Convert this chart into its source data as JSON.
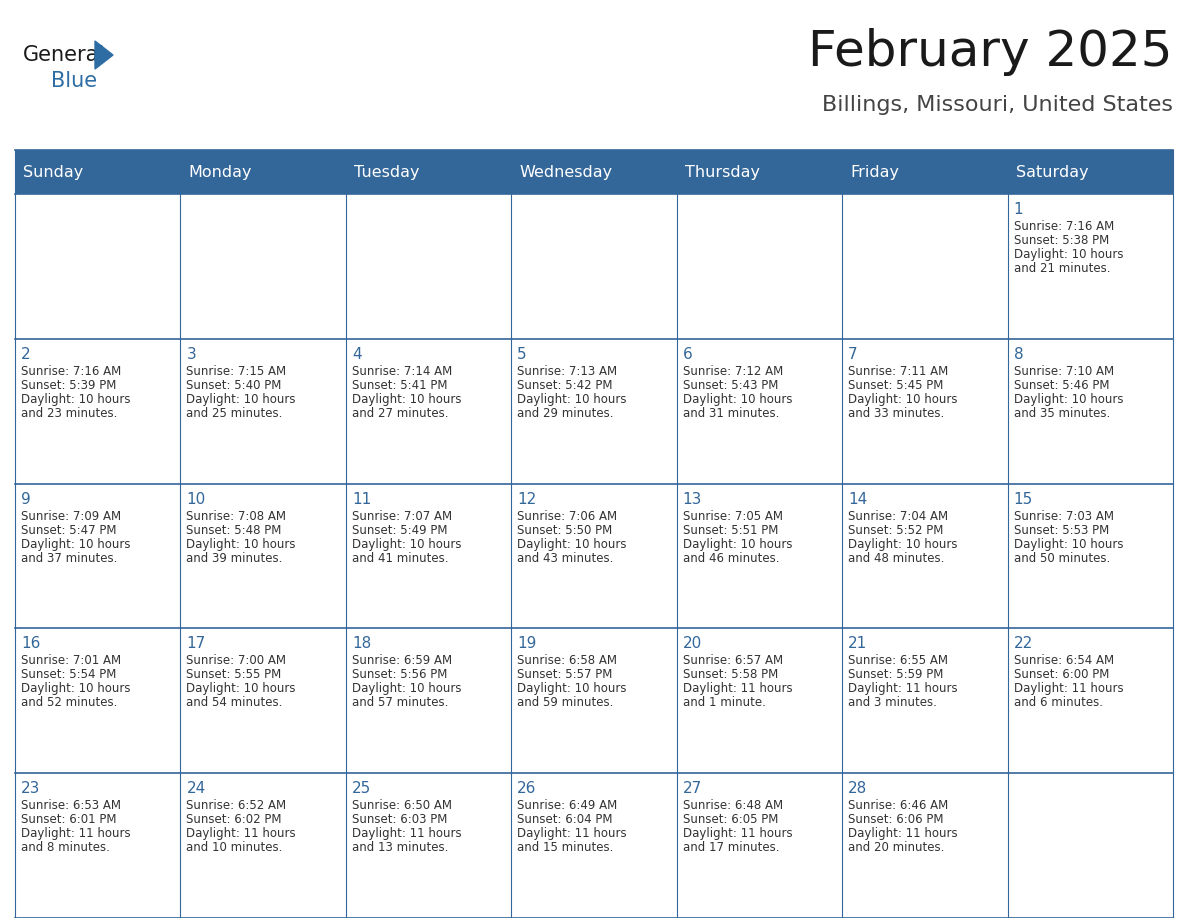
{
  "title": "February 2025",
  "subtitle": "Billings, Missouri, United States",
  "days_of_week": [
    "Sunday",
    "Monday",
    "Tuesday",
    "Wednesday",
    "Thursday",
    "Friday",
    "Saturday"
  ],
  "header_bg": "#336699",
  "header_text": "#FFFFFF",
  "cell_bg": "#FFFFFF",
  "cell_text": "#333333",
  "day_num_color": "#336699",
  "border_color": "#336699",
  "title_color": "#1a1a1a",
  "subtitle_color": "#444444",
  "logo_general_color": "#1a1a1a",
  "logo_blue_color": "#2E6DA4",
  "calendar_data": [
    [
      {
        "day": null,
        "info": ""
      },
      {
        "day": null,
        "info": ""
      },
      {
        "day": null,
        "info": ""
      },
      {
        "day": null,
        "info": ""
      },
      {
        "day": null,
        "info": ""
      },
      {
        "day": null,
        "info": ""
      },
      {
        "day": 1,
        "info": "Sunrise: 7:16 AM\nSunset: 5:38 PM\nDaylight: 10 hours\nand 21 minutes."
      }
    ],
    [
      {
        "day": 2,
        "info": "Sunrise: 7:16 AM\nSunset: 5:39 PM\nDaylight: 10 hours\nand 23 minutes."
      },
      {
        "day": 3,
        "info": "Sunrise: 7:15 AM\nSunset: 5:40 PM\nDaylight: 10 hours\nand 25 minutes."
      },
      {
        "day": 4,
        "info": "Sunrise: 7:14 AM\nSunset: 5:41 PM\nDaylight: 10 hours\nand 27 minutes."
      },
      {
        "day": 5,
        "info": "Sunrise: 7:13 AM\nSunset: 5:42 PM\nDaylight: 10 hours\nand 29 minutes."
      },
      {
        "day": 6,
        "info": "Sunrise: 7:12 AM\nSunset: 5:43 PM\nDaylight: 10 hours\nand 31 minutes."
      },
      {
        "day": 7,
        "info": "Sunrise: 7:11 AM\nSunset: 5:45 PM\nDaylight: 10 hours\nand 33 minutes."
      },
      {
        "day": 8,
        "info": "Sunrise: 7:10 AM\nSunset: 5:46 PM\nDaylight: 10 hours\nand 35 minutes."
      }
    ],
    [
      {
        "day": 9,
        "info": "Sunrise: 7:09 AM\nSunset: 5:47 PM\nDaylight: 10 hours\nand 37 minutes."
      },
      {
        "day": 10,
        "info": "Sunrise: 7:08 AM\nSunset: 5:48 PM\nDaylight: 10 hours\nand 39 minutes."
      },
      {
        "day": 11,
        "info": "Sunrise: 7:07 AM\nSunset: 5:49 PM\nDaylight: 10 hours\nand 41 minutes."
      },
      {
        "day": 12,
        "info": "Sunrise: 7:06 AM\nSunset: 5:50 PM\nDaylight: 10 hours\nand 43 minutes."
      },
      {
        "day": 13,
        "info": "Sunrise: 7:05 AM\nSunset: 5:51 PM\nDaylight: 10 hours\nand 46 minutes."
      },
      {
        "day": 14,
        "info": "Sunrise: 7:04 AM\nSunset: 5:52 PM\nDaylight: 10 hours\nand 48 minutes."
      },
      {
        "day": 15,
        "info": "Sunrise: 7:03 AM\nSunset: 5:53 PM\nDaylight: 10 hours\nand 50 minutes."
      }
    ],
    [
      {
        "day": 16,
        "info": "Sunrise: 7:01 AM\nSunset: 5:54 PM\nDaylight: 10 hours\nand 52 minutes."
      },
      {
        "day": 17,
        "info": "Sunrise: 7:00 AM\nSunset: 5:55 PM\nDaylight: 10 hours\nand 54 minutes."
      },
      {
        "day": 18,
        "info": "Sunrise: 6:59 AM\nSunset: 5:56 PM\nDaylight: 10 hours\nand 57 minutes."
      },
      {
        "day": 19,
        "info": "Sunrise: 6:58 AM\nSunset: 5:57 PM\nDaylight: 10 hours\nand 59 minutes."
      },
      {
        "day": 20,
        "info": "Sunrise: 6:57 AM\nSunset: 5:58 PM\nDaylight: 11 hours\nand 1 minute."
      },
      {
        "day": 21,
        "info": "Sunrise: 6:55 AM\nSunset: 5:59 PM\nDaylight: 11 hours\nand 3 minutes."
      },
      {
        "day": 22,
        "info": "Sunrise: 6:54 AM\nSunset: 6:00 PM\nDaylight: 11 hours\nand 6 minutes."
      }
    ],
    [
      {
        "day": 23,
        "info": "Sunrise: 6:53 AM\nSunset: 6:01 PM\nDaylight: 11 hours\nand 8 minutes."
      },
      {
        "day": 24,
        "info": "Sunrise: 6:52 AM\nSunset: 6:02 PM\nDaylight: 11 hours\nand 10 minutes."
      },
      {
        "day": 25,
        "info": "Sunrise: 6:50 AM\nSunset: 6:03 PM\nDaylight: 11 hours\nand 13 minutes."
      },
      {
        "day": 26,
        "info": "Sunrise: 6:49 AM\nSunset: 6:04 PM\nDaylight: 11 hours\nand 15 minutes."
      },
      {
        "day": 27,
        "info": "Sunrise: 6:48 AM\nSunset: 6:05 PM\nDaylight: 11 hours\nand 17 minutes."
      },
      {
        "day": 28,
        "info": "Sunrise: 6:46 AM\nSunset: 6:06 PM\nDaylight: 11 hours\nand 20 minutes."
      },
      {
        "day": null,
        "info": ""
      }
    ]
  ]
}
